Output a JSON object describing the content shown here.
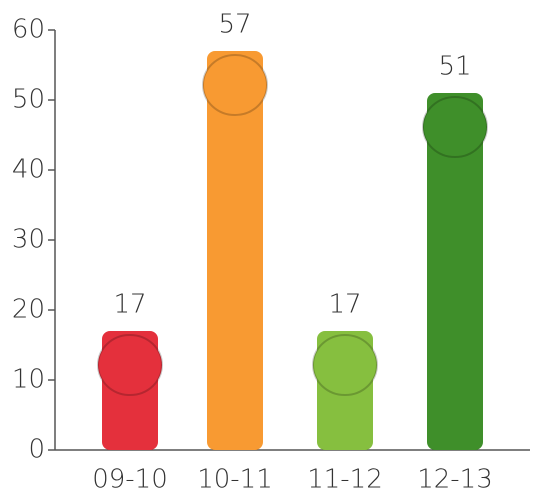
{
  "chart_data": {
    "type": "bar",
    "categories": [
      "09-10",
      "10-11",
      "11-12",
      "12-13"
    ],
    "values": [
      17,
      57,
      17,
      51
    ],
    "colors": [
      "#e4303c",
      "#f89a32",
      "#86bf3f",
      "#3f8f2a"
    ],
    "ylim": [
      0,
      60
    ],
    "yticks": [
      0,
      10,
      20,
      30,
      40,
      50,
      60
    ]
  }
}
